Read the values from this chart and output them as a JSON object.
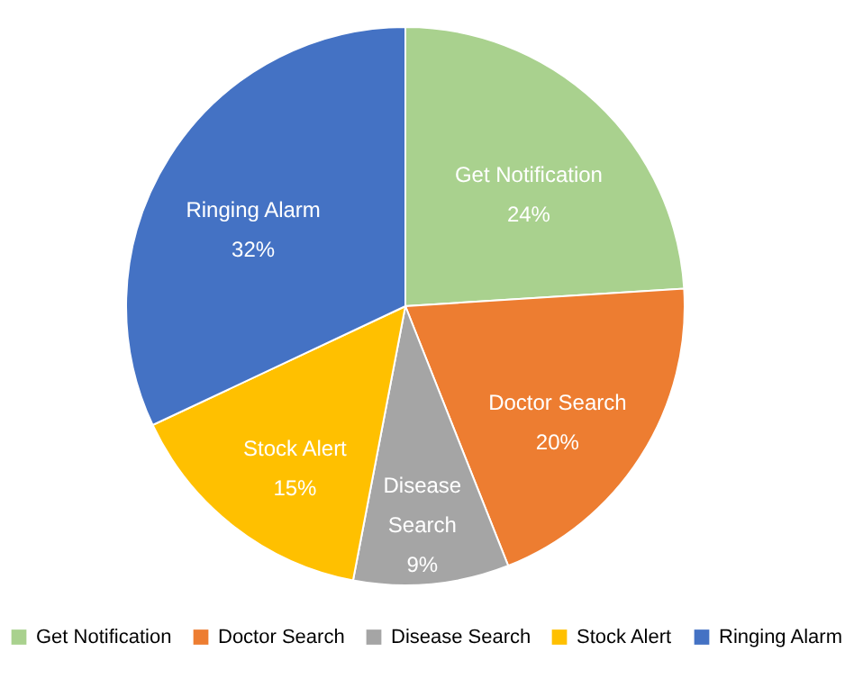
{
  "chart_data": {
    "type": "pie",
    "categories": [
      "Get Notification",
      "Doctor Search",
      "Disease Search",
      "Stock Alert",
      "Ringing Alarm"
    ],
    "values": [
      24,
      20,
      9,
      15,
      32
    ],
    "value_labels": [
      "24%",
      "20%",
      "9%",
      "15%",
      "32%"
    ],
    "colors": [
      "#a9d18e",
      "#ed7d31",
      "#a5a5a5",
      "#ffc000",
      "#4472c4"
    ],
    "legend": "bottom"
  }
}
